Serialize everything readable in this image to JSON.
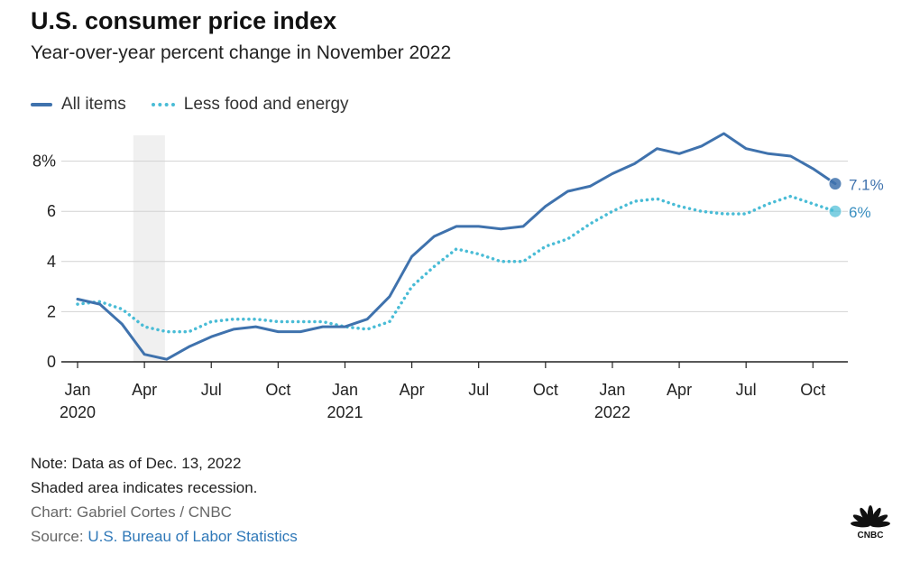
{
  "title": "U.S. consumer price index",
  "subtitle": "Year-over-year percent change in November 2022",
  "legend": {
    "all_items": "All items",
    "core": "Less food and energy"
  },
  "notes": {
    "note": "Note: Data as of Dec. 13, 2022",
    "shaded": "Shaded area indicates recession.",
    "credit": "Chart: Gabriel Cortes / CNBC",
    "source_prefix": "Source: ",
    "source_link": "U.S. Bureau of Labor Statistics"
  },
  "logo_text": "CNBC",
  "colors": {
    "all_items": "#3f72ad",
    "core": "#49bcd6",
    "recession": "#f0f0f0",
    "grid": "#d2d2d2"
  },
  "chart_data": {
    "type": "line",
    "title": "U.S. consumer price index",
    "subtitle": "Year-over-year percent change in November 2022",
    "xlabel": "",
    "ylabel": "",
    "ylim": [
      0,
      9
    ],
    "yticks": [
      0,
      2,
      4,
      6,
      8
    ],
    "ytick_labels": [
      "0",
      "2",
      "4",
      "6",
      "8%"
    ],
    "xticks": [
      {
        "index": 0,
        "label": "Jan",
        "year": "2020"
      },
      {
        "index": 3,
        "label": "Apr",
        "year": ""
      },
      {
        "index": 6,
        "label": "Jul",
        "year": ""
      },
      {
        "index": 9,
        "label": "Oct",
        "year": ""
      },
      {
        "index": 12,
        "label": "Jan",
        "year": "2021"
      },
      {
        "index": 15,
        "label": "Apr",
        "year": ""
      },
      {
        "index": 18,
        "label": "Jul",
        "year": ""
      },
      {
        "index": 21,
        "label": "Oct",
        "year": ""
      },
      {
        "index": 24,
        "label": "Jan",
        "year": "2022"
      },
      {
        "index": 27,
        "label": "Apr",
        "year": ""
      },
      {
        "index": 30,
        "label": "Jul",
        "year": ""
      },
      {
        "index": 33,
        "label": "Oct",
        "year": ""
      }
    ],
    "x_start": "Jan 2020",
    "x_end": "Nov 2022",
    "recession": {
      "start_index": 2,
      "end_index": 4
    },
    "series": [
      {
        "name": "All items",
        "style": "solid",
        "values": [
          2.5,
          2.3,
          1.5,
          0.3,
          0.1,
          0.6,
          1.0,
          1.3,
          1.4,
          1.2,
          1.2,
          1.4,
          1.4,
          1.7,
          2.6,
          4.2,
          5.0,
          5.4,
          5.4,
          5.3,
          5.4,
          6.2,
          6.8,
          7.0,
          7.5,
          7.9,
          8.5,
          8.3,
          8.6,
          9.1,
          8.5,
          8.3,
          8.2,
          7.7,
          7.1
        ],
        "end_label": "7.1%"
      },
      {
        "name": "Less food and energy",
        "style": "dotted",
        "values": [
          2.3,
          2.4,
          2.1,
          1.4,
          1.2,
          1.2,
          1.6,
          1.7,
          1.7,
          1.6,
          1.6,
          1.6,
          1.4,
          1.3,
          1.6,
          3.0,
          3.8,
          4.5,
          4.3,
          4.0,
          4.0,
          4.6,
          4.9,
          5.5,
          6.0,
          6.4,
          6.5,
          6.2,
          6.0,
          5.9,
          5.9,
          6.3,
          6.6,
          6.3,
          6.0
        ],
        "end_label": "6%"
      }
    ]
  }
}
